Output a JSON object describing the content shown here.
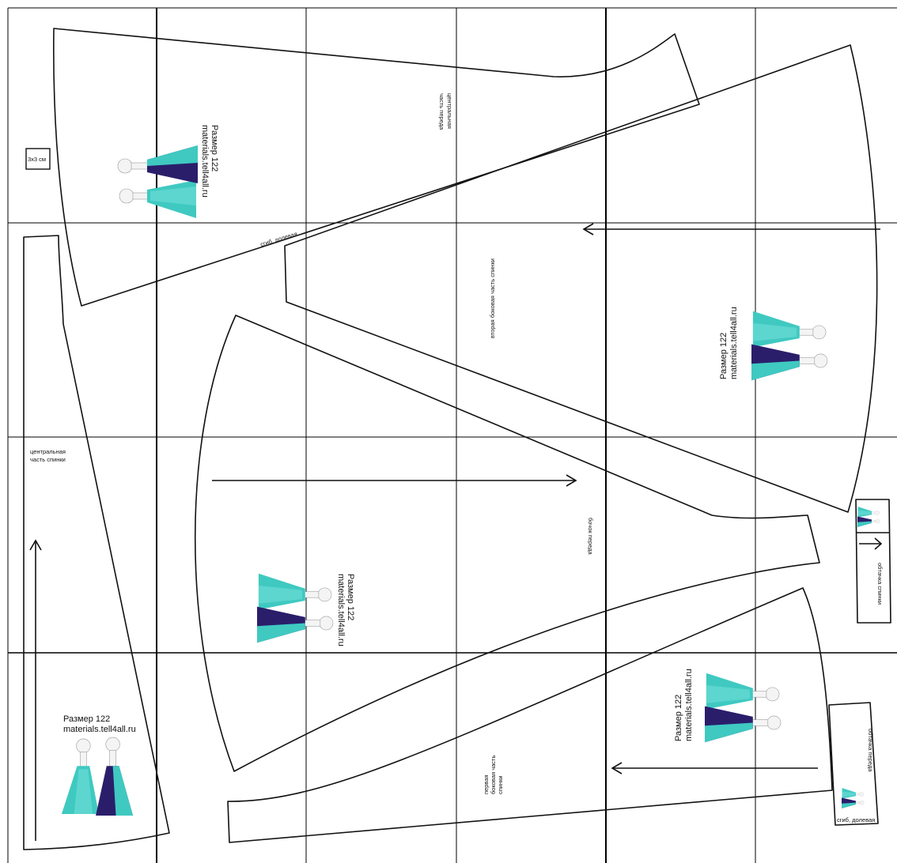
{
  "labels": {
    "size_line": "Размер 122",
    "site_line": "materials.tell4all.ru",
    "scale_box": "3x3 см",
    "fold_grain": "сгиб, долевая",
    "center_front": [
      "центральная",
      "часть переда"
    ],
    "second_side_back": "вторая боковая часть спинки",
    "center_back": [
      "центральная",
      "часть спинки"
    ],
    "side_front": "бочок переда",
    "back_facing": "обтачка спинки",
    "front_facing": "обтачка переда",
    "first_side_back": [
      "первая",
      "боковая часть",
      "спинки"
    ]
  },
  "icons": {
    "dress_illustration": "dress-illustration-icon",
    "grain_arrow": "arrow-icon"
  },
  "colors": {
    "line": "#111111",
    "dress_main": "#3fc9c1",
    "dress_light": "#6fe0d8",
    "dress_dark": "#2a1e6b"
  }
}
